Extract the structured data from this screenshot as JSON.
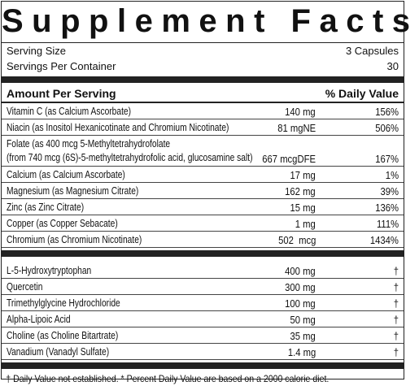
{
  "title": "Supplement Facts",
  "serving": [
    {
      "label": "Serving Size",
      "value": "3 Capsules"
    },
    {
      "label": "Servings Per Container",
      "value": "30"
    }
  ],
  "header": {
    "amount": "Amount Per Serving",
    "daily_value": "% Daily Value"
  },
  "section1": [
    {
      "name": "Vitamin C (as Calcium Ascorbate)",
      "amount": "140 mg",
      "dv": "156%"
    },
    {
      "name": "Niacin (as Inositol Hexanicotinate and Chromium Nicotinate)",
      "amount": "81 mgNE",
      "dv": "506%"
    },
    {
      "name": "Folate (as 400 mcg 5-Methyltetrahydrofolate",
      "detail": "(from 740 mcg (6S)-5-methyltetrahydrofolic acid, glucosamine salt)",
      "amount": "667 mcgDFE",
      "dv": "167%"
    },
    {
      "name": "Calcium (as Calcium Ascorbate)",
      "amount": "17 mg",
      "dv": "1%"
    },
    {
      "name": "Magnesium (as Magnesium Citrate)",
      "amount": "162 mg",
      "dv": "39%"
    },
    {
      "name": "Zinc (as Zinc Citrate)",
      "amount": "15 mg",
      "dv": "136%"
    },
    {
      "name": "Copper (as Copper Sebacate)",
      "amount": "1 mg",
      "dv": "111%"
    },
    {
      "name": "Chromium (as Chromium Nicotinate)",
      "amount": "502  mcg",
      "dv": "1434%"
    }
  ],
  "section2": [
    {
      "name": "L-5-Hydroxytryptophan",
      "amount": "400 mg",
      "dv": "†"
    },
    {
      "name": "Quercetin",
      "amount": "300 mg",
      "dv": "†"
    },
    {
      "name": "Trimethylglycine Hydrochloride",
      "amount": "100 mg",
      "dv": "†"
    },
    {
      "name": "Alpha-Lipoic Acid",
      "amount": "50 mg",
      "dv": "†"
    },
    {
      "name": "Choline (as Choline Bitartrate)",
      "amount": "35 mg",
      "dv": "†"
    },
    {
      "name": "Vanadium (Vanadyl Sulfate)",
      "amount": "1.4 mg",
      "dv": "†"
    }
  ],
  "footnote": "† Daily Value not established.  * Percent Daily Value are based on a 2000 calorie diet."
}
